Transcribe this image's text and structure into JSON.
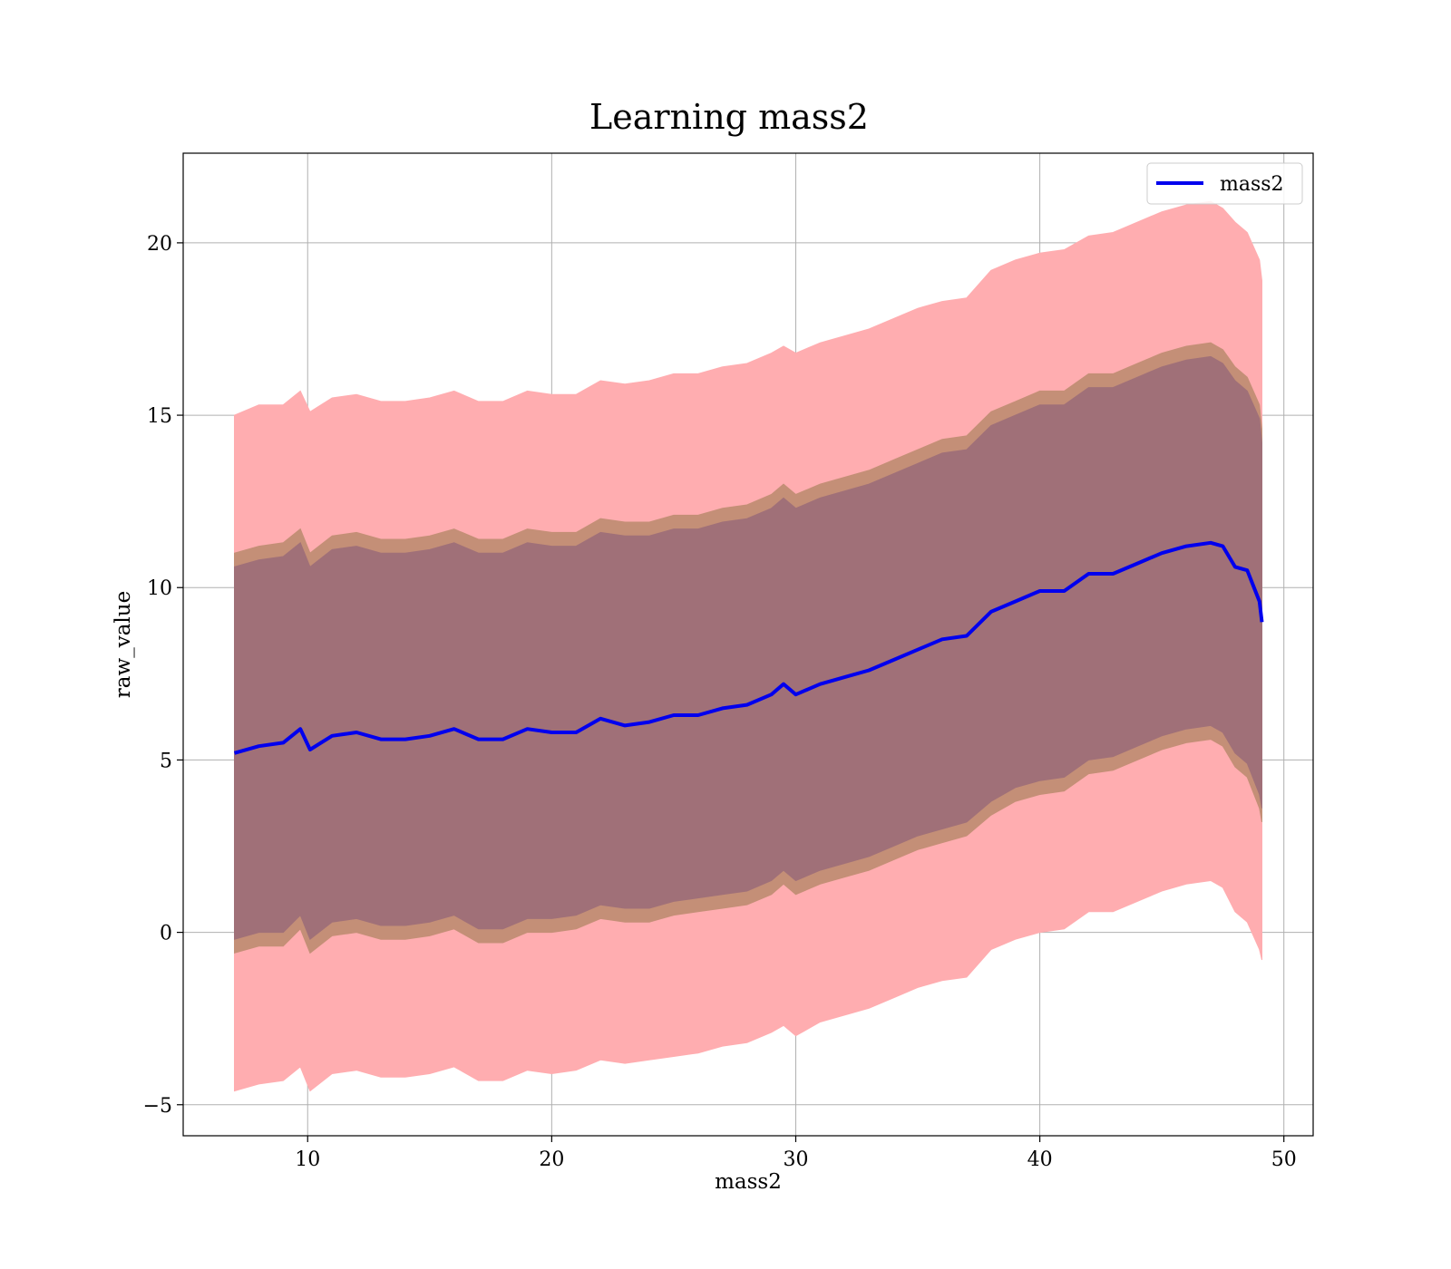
{
  "chart_data": {
    "type": "area",
    "title": "Learning mass2",
    "xlabel": "mass2",
    "ylabel": "raw_value",
    "xlim": [
      4.9,
      51.2
    ],
    "ylim": [
      -5.9,
      22.6
    ],
    "xticks": [
      10,
      20,
      30,
      40,
      50
    ],
    "yticks": [
      -5,
      0,
      5,
      10,
      15,
      20
    ],
    "ytick_labels": [
      "−5",
      "0",
      "5",
      "10",
      "15",
      "20"
    ],
    "grid": true,
    "legend": {
      "placement": "top-right",
      "entries": [
        "mass2"
      ]
    },
    "colors": {
      "line": "#0000ee",
      "outer_band": "#ffadb0",
      "mid_band": "#c48f77",
      "inner_band": "#a07078"
    },
    "x": [
      7.0,
      8.0,
      9.0,
      9.7,
      10.1,
      11.0,
      12.0,
      13.0,
      14.0,
      15.0,
      16.0,
      17.0,
      18.0,
      19.0,
      20.0,
      21.0,
      22.0,
      23.0,
      24.0,
      25.0,
      26.0,
      27.0,
      28.0,
      29.0,
      29.5,
      30.0,
      31.0,
      32.0,
      33.0,
      34.0,
      35.0,
      36.0,
      37.0,
      38.0,
      39.0,
      40.0,
      41.0,
      42.0,
      43.0,
      44.0,
      45.0,
      46.0,
      47.0,
      47.5,
      48.0,
      48.5,
      49.0,
      49.1
    ],
    "series": [
      {
        "name": "mass2",
        "values": [
          5.2,
          5.4,
          5.5,
          5.9,
          5.3,
          5.7,
          5.8,
          5.6,
          5.6,
          5.7,
          5.9,
          5.6,
          5.6,
          5.9,
          5.8,
          5.8,
          6.2,
          6.0,
          6.1,
          6.3,
          6.3,
          6.5,
          6.6,
          6.9,
          7.2,
          6.9,
          7.2,
          7.4,
          7.6,
          7.9,
          8.2,
          8.5,
          8.6,
          9.3,
          9.6,
          9.9,
          9.9,
          10.4,
          10.4,
          10.7,
          11.0,
          11.2,
          11.3,
          11.2,
          10.6,
          10.5,
          9.6,
          9.0
        ]
      }
    ],
    "bands": [
      {
        "lower": [
          -4.6,
          -4.4,
          -4.3,
          -3.9,
          -4.6,
          -4.1,
          -4.0,
          -4.2,
          -4.2,
          -4.1,
          -3.9,
          -4.3,
          -4.3,
          -4.0,
          -4.1,
          -4.0,
          -3.7,
          -3.8,
          -3.7,
          -3.6,
          -3.5,
          -3.3,
          -3.2,
          -2.9,
          -2.7,
          -3.0,
          -2.6,
          -2.4,
          -2.2,
          -1.9,
          -1.6,
          -1.4,
          -1.3,
          -0.5,
          -0.2,
          0.0,
          0.1,
          0.6,
          0.6,
          0.9,
          1.2,
          1.4,
          1.5,
          1.3,
          0.6,
          0.3,
          -0.5,
          -0.8
        ],
        "upper": [
          15.0,
          15.3,
          15.3,
          15.7,
          15.1,
          15.5,
          15.6,
          15.4,
          15.4,
          15.5,
          15.7,
          15.4,
          15.4,
          15.7,
          15.6,
          15.6,
          16.0,
          15.9,
          16.0,
          16.2,
          16.2,
          16.4,
          16.5,
          16.8,
          17.0,
          16.8,
          17.1,
          17.3,
          17.5,
          17.8,
          18.1,
          18.3,
          18.4,
          19.2,
          19.5,
          19.7,
          19.8,
          20.2,
          20.3,
          20.6,
          20.9,
          21.1,
          21.2,
          21.0,
          20.6,
          20.3,
          19.5,
          18.9
        ]
      },
      {
        "lower": [
          -0.6,
          -0.4,
          -0.4,
          0.1,
          -0.6,
          -0.1,
          0.0,
          -0.2,
          -0.2,
          -0.1,
          0.1,
          -0.3,
          -0.3,
          0.0,
          0.0,
          0.1,
          0.4,
          0.3,
          0.3,
          0.5,
          0.6,
          0.7,
          0.8,
          1.1,
          1.4,
          1.1,
          1.4,
          1.6,
          1.8,
          2.1,
          2.4,
          2.6,
          2.8,
          3.4,
          3.8,
          4.0,
          4.1,
          4.6,
          4.7,
          5.0,
          5.3,
          5.5,
          5.6,
          5.4,
          4.8,
          4.5,
          3.6,
          3.2
        ],
        "upper": [
          11.0,
          11.2,
          11.3,
          11.7,
          11.0,
          11.5,
          11.6,
          11.4,
          11.4,
          11.5,
          11.7,
          11.4,
          11.4,
          11.7,
          11.6,
          11.6,
          12.0,
          11.9,
          11.9,
          12.1,
          12.1,
          12.3,
          12.4,
          12.7,
          13.0,
          12.7,
          13.0,
          13.2,
          13.4,
          13.7,
          14.0,
          14.3,
          14.4,
          15.1,
          15.4,
          15.7,
          15.7,
          16.2,
          16.2,
          16.5,
          16.8,
          17.0,
          17.1,
          16.9,
          16.4,
          16.1,
          15.3,
          14.6
        ]
      },
      {
        "lower": [
          -0.2,
          0.0,
          0.0,
          0.5,
          -0.2,
          0.3,
          0.4,
          0.2,
          0.2,
          0.3,
          0.5,
          0.1,
          0.1,
          0.4,
          0.4,
          0.5,
          0.8,
          0.7,
          0.7,
          0.9,
          1.0,
          1.1,
          1.2,
          1.5,
          1.8,
          1.5,
          1.8,
          2.0,
          2.2,
          2.5,
          2.8,
          3.0,
          3.2,
          3.8,
          4.2,
          4.4,
          4.5,
          5.0,
          5.1,
          5.4,
          5.7,
          5.9,
          6.0,
          5.8,
          5.2,
          4.9,
          4.0,
          3.6
        ],
        "upper": [
          10.6,
          10.8,
          10.9,
          11.3,
          10.6,
          11.1,
          11.2,
          11.0,
          11.0,
          11.1,
          11.3,
          11.0,
          11.0,
          11.3,
          11.2,
          11.2,
          11.6,
          11.5,
          11.5,
          11.7,
          11.7,
          11.9,
          12.0,
          12.3,
          12.6,
          12.3,
          12.6,
          12.8,
          13.0,
          13.3,
          13.6,
          13.9,
          14.0,
          14.7,
          15.0,
          15.3,
          15.3,
          15.8,
          15.8,
          16.1,
          16.4,
          16.6,
          16.7,
          16.5,
          16.0,
          15.7,
          14.9,
          14.2
        ]
      }
    ]
  }
}
